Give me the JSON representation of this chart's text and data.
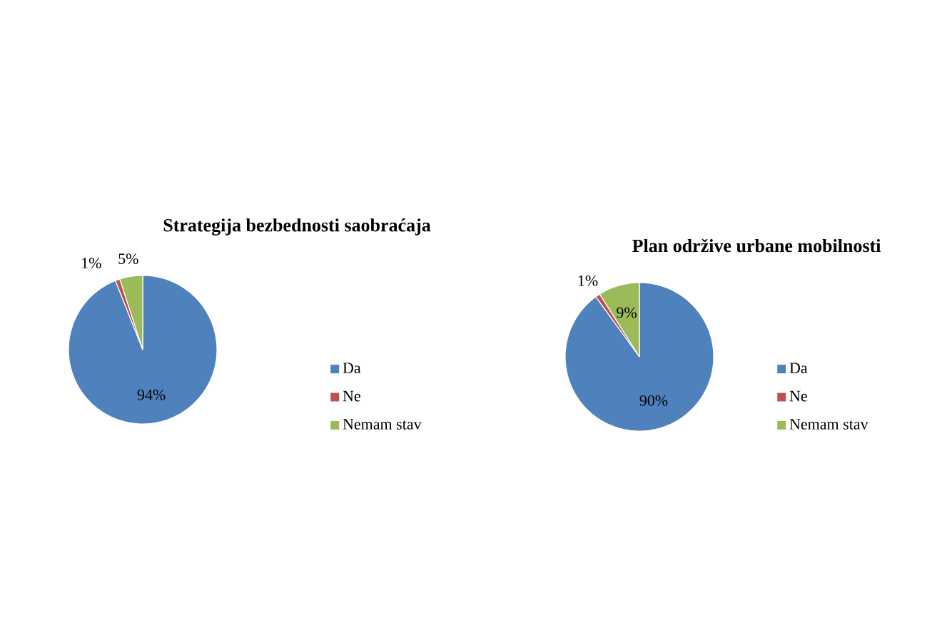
{
  "chart_data": [
    {
      "type": "pie",
      "title": "Strategija bezbednosti saobraćaja",
      "categories": [
        "Da",
        "Ne",
        "Nemam stav"
      ],
      "values": [
        94,
        1,
        5
      ],
      "colors": [
        "#4f81bd",
        "#c0504d",
        "#9bbb59"
      ],
      "value_labels": [
        "94%",
        "1%",
        "5%"
      ],
      "legend": "right"
    },
    {
      "type": "pie",
      "title": "Plan održive urbane mobilnosti",
      "categories": [
        "Da",
        "Ne",
        "Nemam stav"
      ],
      "values": [
        90,
        1,
        9
      ],
      "colors": [
        "#4f81bd",
        "#c0504d",
        "#9bbb59"
      ],
      "value_labels": [
        "90%",
        "1%",
        "9%"
      ],
      "legend": "right"
    }
  ]
}
